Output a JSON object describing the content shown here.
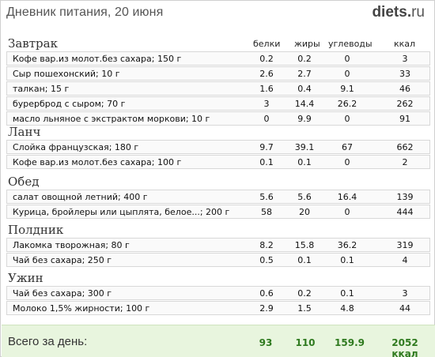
{
  "header": {
    "title": "Дневник питания, 20 июня",
    "logo_main": "diets",
    "logo_tld": "ru"
  },
  "columns": {
    "protein": "белки",
    "fat": "жиры",
    "carbs": "углеводы",
    "kcal": "ккал"
  },
  "meals": [
    {
      "title": "Завтрак",
      "items": [
        {
          "name": "Кофе вар.из молот.без сахара; 150 г",
          "protein": "0.2",
          "fat": "0.2",
          "carbs": "0",
          "kcal": "3"
        },
        {
          "name": "Сыр пошехонский; 10 г",
          "protein": "2.6",
          "fat": "2.7",
          "carbs": "0",
          "kcal": "33"
        },
        {
          "name": "талкан; 15 г",
          "protein": "1.6",
          "fat": "0.4",
          "carbs": "9.1",
          "kcal": "46"
        },
        {
          "name": "бурерброд с сыром; 70 г",
          "protein": "3",
          "fat": "14.4",
          "carbs": "26.2",
          "kcal": "262"
        },
        {
          "name": "масло льняное с экстрактом моркови; 10 г",
          "protein": "0",
          "fat": "9.9",
          "carbs": "0",
          "kcal": "91"
        }
      ]
    },
    {
      "title": "Ланч",
      "items": [
        {
          "name": "Слойка французская; 180 г",
          "protein": "9.7",
          "fat": "39.1",
          "carbs": "67",
          "kcal": "662"
        },
        {
          "name": "Кофе вар.из молот.без сахара; 100 г",
          "protein": "0.1",
          "fat": "0.1",
          "carbs": "0",
          "kcal": "2"
        }
      ]
    },
    {
      "title": "Обед",
      "items": [
        {
          "name": "салат овощной летний; 400 г",
          "protein": "5.6",
          "fat": "5.6",
          "carbs": "16.4",
          "kcal": "139"
        },
        {
          "name": "Курица, бройлеры или цыплята, белое...; 200 г",
          "protein": "58",
          "fat": "20",
          "carbs": "0",
          "kcal": "444"
        }
      ]
    },
    {
      "title": "Полдник",
      "items": [
        {
          "name": "Лакомка творожная; 80 г",
          "protein": "8.2",
          "fat": "15.8",
          "carbs": "36.2",
          "kcal": "319"
        },
        {
          "name": "Чай без сахара; 250 г",
          "protein": "0.5",
          "fat": "0.1",
          "carbs": "0.1",
          "kcal": "4"
        }
      ]
    },
    {
      "title": "Ужин",
      "items": [
        {
          "name": "Чай без сахара; 300 г",
          "protein": "0.6",
          "fat": "0.2",
          "carbs": "0.1",
          "kcal": "3"
        },
        {
          "name": "Молоко 1,5% жирности; 100 г",
          "protein": "2.9",
          "fat": "1.5",
          "carbs": "4.8",
          "kcal": "44"
        }
      ]
    }
  ],
  "totals": {
    "label": "Всего за день:",
    "protein": "93",
    "fat": "110",
    "carbs": "159.9",
    "kcal": "2052 ккал"
  }
}
